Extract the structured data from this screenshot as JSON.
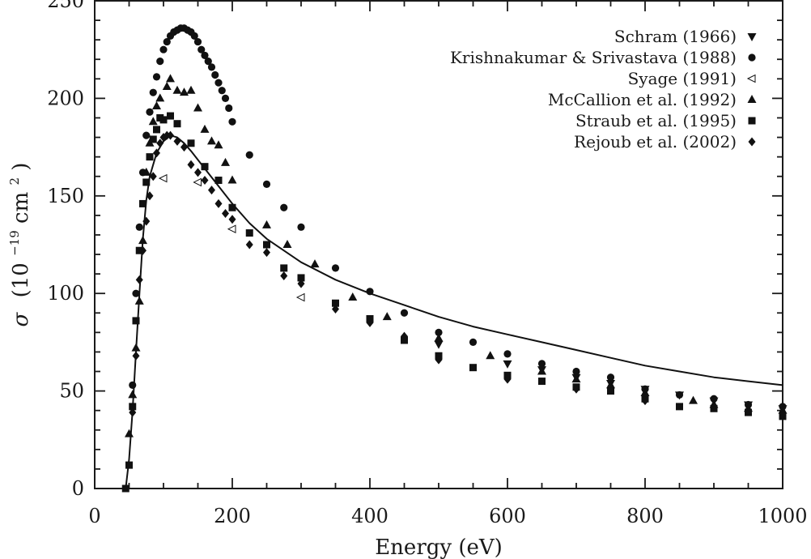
{
  "chart_data": {
    "type": "scatter",
    "title": "",
    "xlabel": "Energy (eV)",
    "ylabel_parts": [
      "σ",
      "(10",
      "−19",
      " cm",
      "2",
      ")"
    ],
    "xlim": [
      0,
      1000
    ],
    "ylim": [
      0,
      250
    ],
    "x_ticks": [
      0,
      200,
      400,
      600,
      800,
      1000
    ],
    "y_ticks": [
      0,
      50,
      100,
      150,
      200,
      250
    ],
    "x_tick_labels": [
      "0",
      "200",
      "400",
      "600",
      "800",
      "1000"
    ],
    "y_tick_labels": [
      "0",
      "50",
      "100",
      "150",
      "200",
      "250"
    ],
    "grid": false,
    "legend_position": "top-right",
    "series": [
      {
        "name": "Schram (1966)",
        "marker": "triangle-down",
        "color": "#111111",
        "points": [
          [
            500,
            74
          ],
          [
            600,
            64
          ],
          [
            650,
            61
          ],
          [
            700,
            57
          ],
          [
            750,
            54
          ],
          [
            800,
            51
          ],
          [
            850,
            48
          ],
          [
            900,
            45
          ],
          [
            950,
            43
          ],
          [
            1000,
            41
          ]
        ]
      },
      {
        "name": "Krishnakumar & Srivastava (1988)",
        "marker": "circle",
        "color": "#111111",
        "points": [
          [
            55,
            53
          ],
          [
            60,
            100
          ],
          [
            65,
            134
          ],
          [
            70,
            162
          ],
          [
            75,
            181
          ],
          [
            80,
            193
          ],
          [
            85,
            203
          ],
          [
            90,
            211
          ],
          [
            95,
            219
          ],
          [
            100,
            225
          ],
          [
            105,
            229
          ],
          [
            110,
            232
          ],
          [
            115,
            234
          ],
          [
            120,
            235
          ],
          [
            125,
            236
          ],
          [
            130,
            236
          ],
          [
            135,
            235
          ],
          [
            140,
            234
          ],
          [
            145,
            232
          ],
          [
            150,
            229
          ],
          [
            155,
            225
          ],
          [
            160,
            222
          ],
          [
            165,
            219
          ],
          [
            170,
            216
          ],
          [
            175,
            212
          ],
          [
            180,
            208
          ],
          [
            185,
            204
          ],
          [
            190,
            200
          ],
          [
            195,
            195
          ],
          [
            200,
            188
          ],
          [
            225,
            171
          ],
          [
            250,
            156
          ],
          [
            275,
            144
          ],
          [
            300,
            134
          ],
          [
            350,
            113
          ],
          [
            400,
            101
          ],
          [
            450,
            90
          ],
          [
            500,
            80
          ],
          [
            550,
            75
          ],
          [
            600,
            69
          ],
          [
            650,
            64
          ],
          [
            700,
            60
          ],
          [
            750,
            57
          ],
          [
            800,
            51
          ],
          [
            850,
            48
          ],
          [
            900,
            46
          ],
          [
            950,
            43
          ],
          [
            1000,
            42
          ]
        ]
      },
      {
        "name": "Syage (1991)",
        "marker": "triangle-left-open",
        "color": "#111111",
        "points": [
          [
            100,
            159
          ],
          [
            150,
            157
          ],
          [
            200,
            133
          ],
          [
            300,
            98
          ]
        ]
      },
      {
        "name": "McCallion et al. (1992)",
        "marker": "triangle-up",
        "color": "#111111",
        "points": [
          [
            50,
            28
          ],
          [
            55,
            48
          ],
          [
            60,
            72
          ],
          [
            65,
            96
          ],
          [
            70,
            127
          ],
          [
            75,
            162
          ],
          [
            80,
            177
          ],
          [
            85,
            188
          ],
          [
            90,
            196
          ],
          [
            95,
            200
          ],
          [
            105,
            206
          ],
          [
            110,
            210
          ],
          [
            120,
            204
          ],
          [
            130,
            203
          ],
          [
            140,
            204
          ],
          [
            150,
            195
          ],
          [
            160,
            184
          ],
          [
            170,
            178
          ],
          [
            180,
            176
          ],
          [
            190,
            167
          ],
          [
            200,
            158
          ],
          [
            250,
            135
          ],
          [
            280,
            125
          ],
          [
            320,
            115
          ],
          [
            375,
            98
          ],
          [
            425,
            88
          ],
          [
            500,
            77
          ],
          [
            575,
            68
          ],
          [
            650,
            60
          ],
          [
            700,
            56
          ],
          [
            750,
            53
          ],
          [
            800,
            49
          ],
          [
            870,
            45
          ],
          [
            900,
            43
          ],
          [
            950,
            41
          ],
          [
            1000,
            40
          ]
        ]
      },
      {
        "name": "Straub et al. (1995)",
        "marker": "square",
        "color": "#111111",
        "points": [
          [
            45,
            0
          ],
          [
            50,
            12
          ],
          [
            55,
            42
          ],
          [
            60,
            86
          ],
          [
            65,
            122
          ],
          [
            70,
            146
          ],
          [
            75,
            157
          ],
          [
            80,
            170
          ],
          [
            85,
            179
          ],
          [
            90,
            184
          ],
          [
            95,
            190
          ],
          [
            100,
            189
          ],
          [
            110,
            191
          ],
          [
            120,
            187
          ],
          [
            140,
            177
          ],
          [
            160,
            165
          ],
          [
            180,
            158
          ],
          [
            200,
            144
          ],
          [
            225,
            131
          ],
          [
            250,
            125
          ],
          [
            275,
            113
          ],
          [
            300,
            108
          ],
          [
            350,
            95
          ],
          [
            400,
            87
          ],
          [
            450,
            76
          ],
          [
            500,
            68
          ],
          [
            550,
            62
          ],
          [
            600,
            58
          ],
          [
            650,
            55
          ],
          [
            700,
            52
          ],
          [
            750,
            50
          ],
          [
            800,
            46
          ],
          [
            850,
            42
          ],
          [
            900,
            41
          ],
          [
            950,
            39
          ],
          [
            1000,
            37
          ]
        ]
      },
      {
        "name": "Rejoub et al. (2002)",
        "marker": "diamond",
        "color": "#111111",
        "points": [
          [
            55,
            39
          ],
          [
            60,
            68
          ],
          [
            65,
            107
          ],
          [
            70,
            122
          ],
          [
            75,
            137
          ],
          [
            80,
            150
          ],
          [
            85,
            160
          ],
          [
            90,
            172
          ],
          [
            95,
            177
          ],
          [
            100,
            180
          ],
          [
            105,
            181
          ],
          [
            110,
            181
          ],
          [
            120,
            178
          ],
          [
            130,
            175
          ],
          [
            140,
            166
          ],
          [
            150,
            162
          ],
          [
            160,
            158
          ],
          [
            170,
            153
          ],
          [
            180,
            146
          ],
          [
            190,
            141
          ],
          [
            200,
            138
          ],
          [
            225,
            125
          ],
          [
            250,
            121
          ],
          [
            275,
            109
          ],
          [
            300,
            105
          ],
          [
            350,
            92
          ],
          [
            400,
            85
          ],
          [
            450,
            78
          ],
          [
            500,
            66
          ],
          [
            600,
            56
          ],
          [
            700,
            51
          ],
          [
            800,
            45
          ],
          [
            900,
            42
          ],
          [
            1000,
            38
          ]
        ]
      }
    ],
    "curve": {
      "points": [
        [
          45,
          0
        ],
        [
          50,
          15
        ],
        [
          55,
          40
        ],
        [
          60,
          70
        ],
        [
          65,
          100
        ],
        [
          70,
          128
        ],
        [
          75,
          148
        ],
        [
          80,
          160
        ],
        [
          90,
          172
        ],
        [
          100,
          178
        ],
        [
          110,
          181
        ],
        [
          120,
          180
        ],
        [
          130,
          177
        ],
        [
          140,
          173
        ],
        [
          160,
          164
        ],
        [
          180,
          155
        ],
        [
          200,
          146
        ],
        [
          225,
          136
        ],
        [
          250,
          128
        ],
        [
          300,
          116
        ],
        [
          350,
          107
        ],
        [
          400,
          100
        ],
        [
          450,
          94
        ],
        [
          500,
          88
        ],
        [
          550,
          83
        ],
        [
          600,
          79
        ],
        [
          650,
          75
        ],
        [
          700,
          71
        ],
        [
          750,
          67
        ],
        [
          800,
          63
        ],
        [
          850,
          60
        ],
        [
          900,
          57
        ],
        [
          950,
          55
        ],
        [
          1000,
          53
        ]
      ]
    }
  }
}
